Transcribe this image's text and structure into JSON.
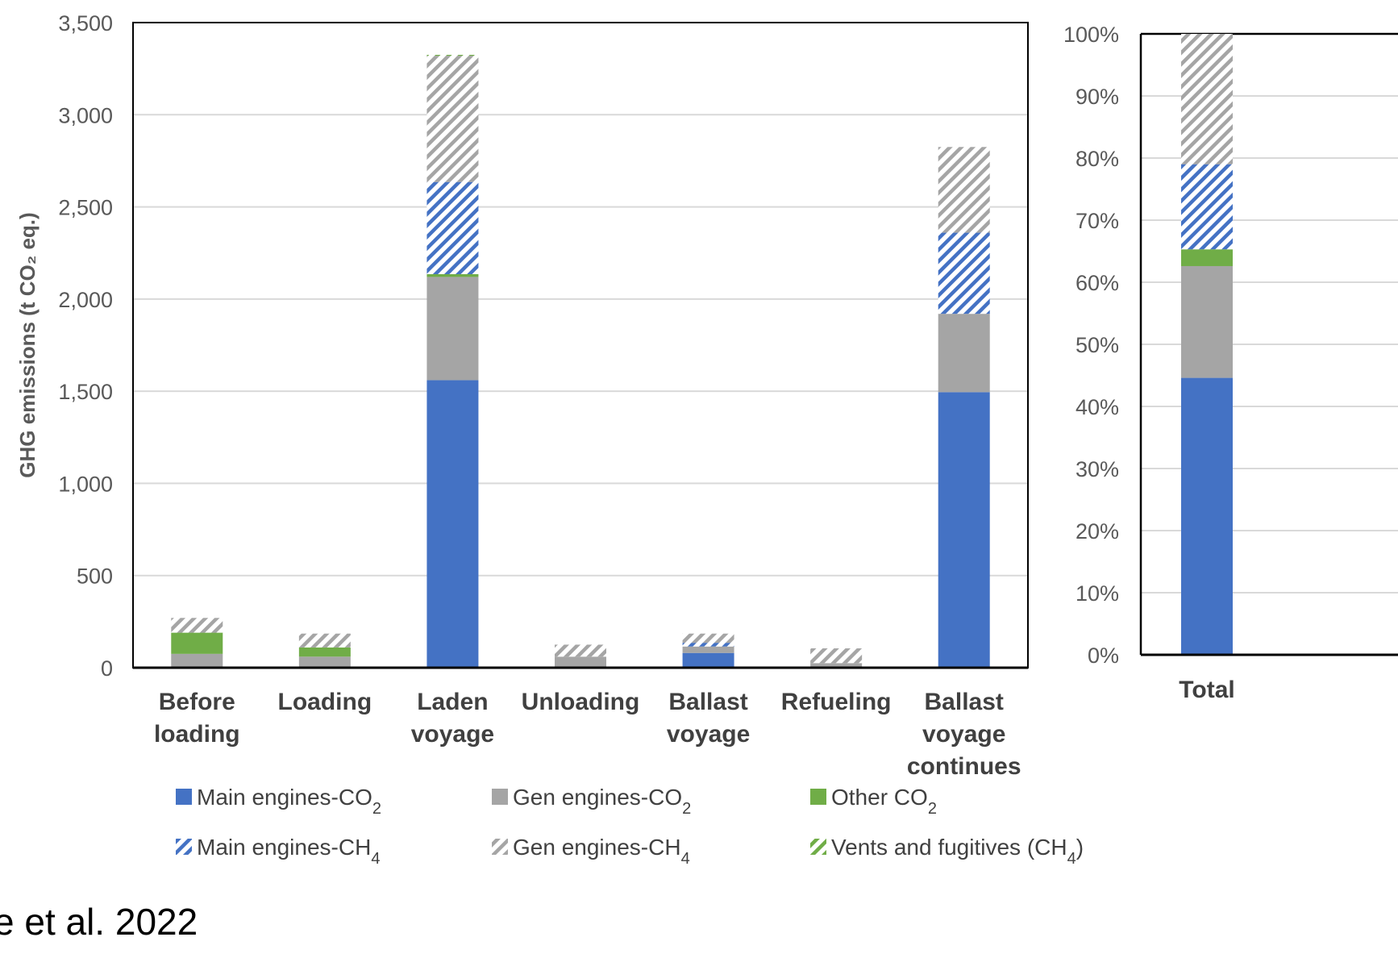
{
  "caption": "e et al. 2022",
  "colors": {
    "main_co2": "#4472C4",
    "gen_co2": "#A5A5A5",
    "other_co2": "#70AD47",
    "main_ch4": "#4472C4",
    "gen_ch4": "#A5A5A5",
    "vents_ch4": "#70AD47"
  },
  "chart_data": [
    {
      "type": "bar",
      "stacked": true,
      "ylabel": "GHG emissions (t CO₂ eq.)",
      "ylim": [
        0,
        3500
      ],
      "yticks": [
        "0",
        "500",
        "1,000",
        "1,500",
        "2,000",
        "2,500",
        "3,000",
        "3,500"
      ],
      "ytick_values": [
        0,
        500,
        1000,
        1500,
        2000,
        2500,
        3000,
        3500
      ],
      "grid": true,
      "categories": [
        [
          "Before",
          "loading"
        ],
        [
          "Loading"
        ],
        [
          "Laden",
          "voyage"
        ],
        [
          "Unloading"
        ],
        [
          "Ballast",
          "voyage"
        ],
        [
          "Refueling"
        ],
        [
          "Ballast",
          "voyage",
          "continues"
        ]
      ],
      "series": [
        {
          "name": "Main engines-CO",
          "sub": "2",
          "pattern": "solid",
          "color_key": "main_co2",
          "values": [
            0,
            0,
            1560,
            0,
            80,
            0,
            1495
          ]
        },
        {
          "name": "Gen engines-CO",
          "sub": "2",
          "pattern": "solid",
          "color_key": "gen_co2",
          "values": [
            75,
            60,
            560,
            60,
            35,
            25,
            425
          ]
        },
        {
          "name": "Other CO",
          "sub": "2",
          "pattern": "solid",
          "color_key": "other_co2",
          "values": [
            115,
            50,
            15,
            0,
            0,
            0,
            0
          ]
        },
        {
          "name": "Main engines-CH",
          "sub": "4",
          "pattern": "hatch",
          "color_key": "main_ch4",
          "values": [
            0,
            0,
            500,
            0,
            20,
            0,
            440
          ]
        },
        {
          "name": "Gen engines-CH",
          "sub": "4",
          "pattern": "hatch",
          "color_key": "gen_ch4",
          "values": [
            80,
            75,
            685,
            65,
            50,
            80,
            465
          ]
        },
        {
          "name": "Vents and fugitives (CH",
          "sub": "4",
          "suffix": ")",
          "pattern": "hatch",
          "color_key": "vents_ch4",
          "values": [
            0,
            0,
            5,
            0,
            0,
            0,
            0
          ]
        }
      ]
    },
    {
      "type": "bar",
      "stacked": true,
      "percent": true,
      "ylim": [
        0,
        100
      ],
      "yticks": [
        "0%",
        "10%",
        "20%",
        "30%",
        "40%",
        "50%",
        "60%",
        "70%",
        "80%",
        "90%",
        "100%"
      ],
      "categories": [
        "Total"
      ],
      "series": [
        {
          "name": "Main engines-CO2",
          "color_key": "main_co2",
          "pattern": "solid",
          "values": [
            44.6
          ]
        },
        {
          "name": "Gen engines-CO2",
          "color_key": "gen_co2",
          "pattern": "solid",
          "values": [
            18.0
          ]
        },
        {
          "name": "Other CO2",
          "color_key": "other_co2",
          "pattern": "solid",
          "values": [
            2.7
          ]
        },
        {
          "name": "Main engines-CH4",
          "color_key": "main_ch4",
          "pattern": "hatch",
          "values": [
            13.7
          ]
        },
        {
          "name": "Gen engines-CH4",
          "color_key": "gen_ch4",
          "pattern": "hatch",
          "values": [
            21.0
          ]
        },
        {
          "name": "Vents and fugitives (CH4)",
          "color_key": "vents_ch4",
          "pattern": "hatch",
          "values": [
            0.0
          ]
        }
      ]
    }
  ]
}
